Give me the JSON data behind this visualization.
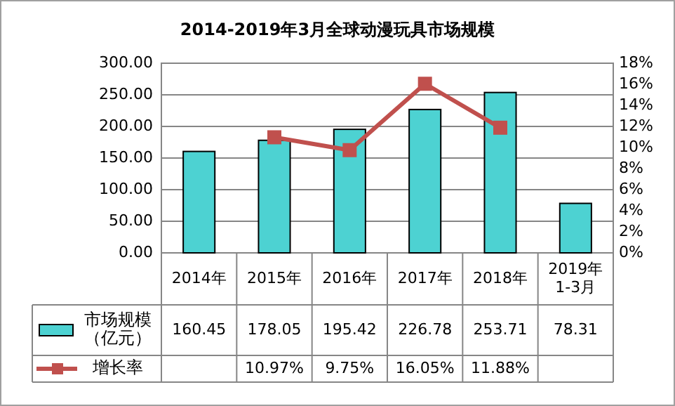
{
  "chart_data": {
    "type": "bar",
    "title": "2014-2019年3月全球动漫玩具市场规模",
    "categories": [
      "2014年",
      "2015年",
      "2016年",
      "2017年",
      "2018年",
      "2019年\n1-3月"
    ],
    "series": [
      {
        "name": "市场规模（亿元）",
        "color": "#4dd2d2",
        "values": [
          160.45,
          178.05,
          195.42,
          226.78,
          253.71,
          78.31
        ],
        "value_labels": [
          "160.45",
          "178.05",
          "195.42",
          "226.78",
          "253.71",
          "78.31"
        ]
      },
      {
        "name": "增长率",
        "type": "line",
        "axis": "y2",
        "color": "#c0504d",
        "marker": "square",
        "values": [
          null,
          10.97,
          9.75,
          16.05,
          11.88,
          null
        ],
        "value_labels": [
          null,
          "10.97%",
          "9.75%",
          "16.05%",
          "11.88%",
          null
        ]
      }
    ],
    "ylim": [
      0,
      300
    ],
    "yticks": [
      {
        "value": 0,
        "label": "0.00"
      },
      {
        "value": 50,
        "label": "50.00"
      },
      {
        "value": 100,
        "label": "100.00"
      },
      {
        "value": 150,
        "label": "150.00"
      },
      {
        "value": 200,
        "label": "200.00"
      },
      {
        "value": 250,
        "label": "250.00"
      },
      {
        "value": 300,
        "label": "300.00"
      }
    ],
    "y2lim": [
      0,
      18
    ],
    "y2ticks": [
      {
        "value": 0,
        "label": "0%"
      },
      {
        "value": 2,
        "label": "2%"
      },
      {
        "value": 4,
        "label": "4%"
      },
      {
        "value": 6,
        "label": "6%"
      },
      {
        "value": 8,
        "label": "8%"
      },
      {
        "value": 10,
        "label": "10%"
      },
      {
        "value": 12,
        "label": "12%"
      },
      {
        "value": 14,
        "label": "14%"
      },
      {
        "value": 16,
        "label": "16%"
      },
      {
        "value": 18,
        "label": "18%"
      }
    ],
    "grid": "y",
    "legend": "bottom"
  }
}
